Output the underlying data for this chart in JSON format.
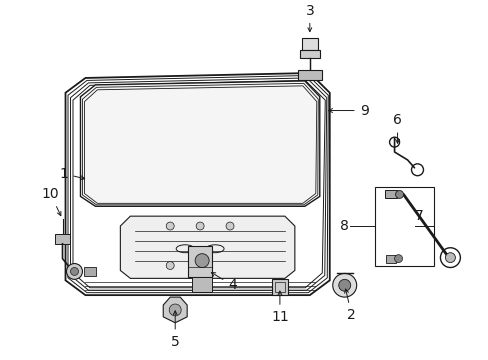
{
  "bg_color": "#ffffff",
  "line_color": "#1a1a1a",
  "fig_width": 4.89,
  "fig_height": 3.6,
  "dpi": 100,
  "font_size": 9,
  "font_weight": "normal",
  "label_fontsize": 10
}
